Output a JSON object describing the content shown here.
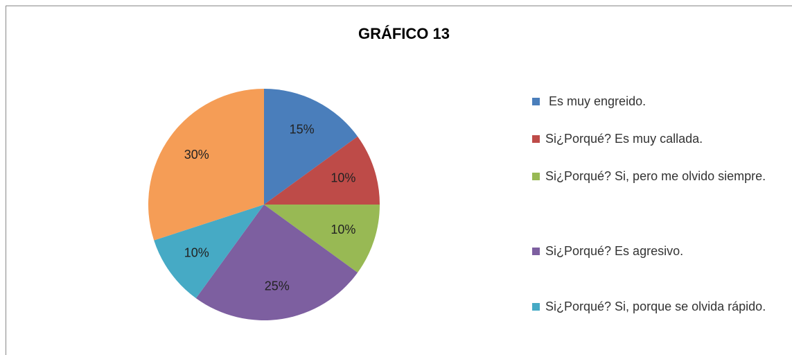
{
  "chart_data": {
    "type": "pie",
    "title": "GRÁFICO 13",
    "categories": [
      " Es muy engreido.",
      "Si¿Porqué? Es muy callada.",
      "Si¿Porqué? Si, pero me olvido siempre.",
      "Si¿Porqué? Es agresivo.",
      "Si¿Porqué? Si, porque se olvida rápido.",
      null
    ],
    "values": [
      15,
      10,
      10,
      25,
      10,
      30
    ],
    "value_labels": [
      "15%",
      "10%",
      "10%",
      "25%",
      "10%",
      "30%"
    ],
    "colors": [
      "#4a7ebb",
      "#be4b48",
      "#98b954",
      "#7d5fa0",
      "#46aac5",
      "#f59d56"
    ]
  }
}
